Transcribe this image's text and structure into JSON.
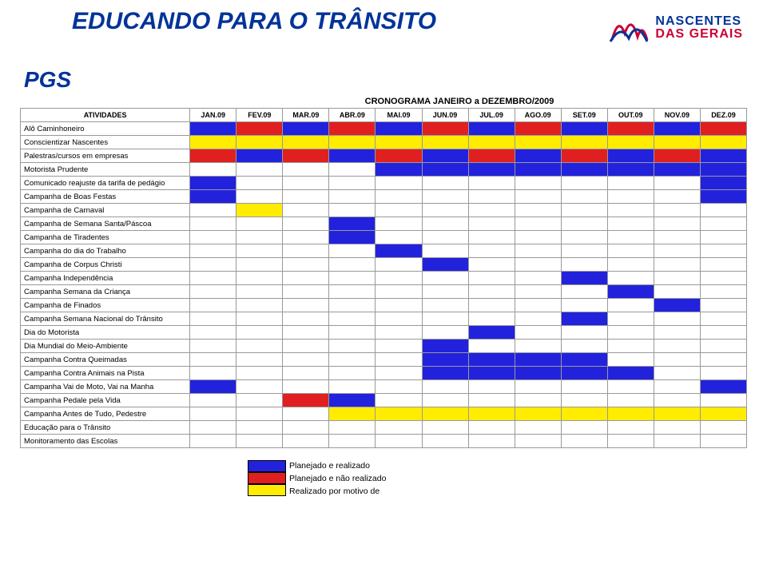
{
  "header": {
    "brand_abbr": "PGS",
    "title": "EDUCANDO PARA O TRÂNSITO",
    "logo": {
      "line1": "NASCENTES",
      "line2": "DAS GERAIS"
    }
  },
  "subtitle": "CRONOGRAMA JANEIRO a DEZEMBRO/2009",
  "columns_label": "ATIVIDADES",
  "months": [
    "JAN.09",
    "FEV.09",
    "MAR.09",
    "ABR.09",
    "MAI.09",
    "JUN.09",
    "JUL.09",
    "AGO.09",
    "SET.09",
    "OUT.09",
    "NOV.09",
    "DEZ.09"
  ],
  "colors": {
    "blue": "#2222dd",
    "red": "#e02020",
    "yellow": "#ffec00",
    "white": "#ffffff",
    "header_text": "#003399",
    "logo_red": "#cc0033",
    "border": "#999999"
  },
  "activities": [
    {
      "name": "Alô Caminhoneiro",
      "cells": [
        "blue",
        "red",
        "blue",
        "red",
        "blue",
        "red",
        "blue",
        "red",
        "blue",
        "red",
        "blue",
        "red"
      ]
    },
    {
      "name": "Conscientizar Nascentes",
      "cells": [
        "yellow",
        "yellow",
        "yellow",
        "yellow",
        "yellow",
        "yellow",
        "yellow",
        "yellow",
        "yellow",
        "yellow",
        "yellow",
        "yellow"
      ]
    },
    {
      "name": "Palestras/cursos em empresas",
      "cells": [
        "red",
        "blue",
        "red",
        "blue",
        "red",
        "blue",
        "red",
        "blue",
        "red",
        "blue",
        "red",
        "blue"
      ]
    },
    {
      "name": "Motorista Prudente",
      "cells": [
        "",
        "",
        "",
        "",
        "blue",
        "blue",
        "blue",
        "blue",
        "blue",
        "blue",
        "blue",
        "blue"
      ]
    },
    {
      "name": "Comunicado reajuste da tarifa de pedágio",
      "cells": [
        "blue",
        "",
        "",
        "",
        "",
        "",
        "",
        "",
        "",
        "",
        "",
        "blue"
      ]
    },
    {
      "name": "Campanha de Boas Festas",
      "cells": [
        "blue",
        "",
        "",
        "",
        "",
        "",
        "",
        "",
        "",
        "",
        "",
        "blue"
      ]
    },
    {
      "name": "Campanha de Carnaval",
      "cells": [
        "",
        "yellow",
        "",
        "",
        "",
        "",
        "",
        "",
        "",
        "",
        "",
        ""
      ]
    },
    {
      "name": "Campanha de Semana Santa/Páscoa",
      "cells": [
        "",
        "",
        "",
        "blue",
        "",
        "",
        "",
        "",
        "",
        "",
        "",
        ""
      ]
    },
    {
      "name": "Campanha de Tiradentes",
      "cells": [
        "",
        "",
        "",
        "blue",
        "",
        "",
        "",
        "",
        "",
        "",
        "",
        ""
      ]
    },
    {
      "name": "Campanha do dia do Trabalho",
      "cells": [
        "",
        "",
        "",
        "",
        "blue",
        "",
        "",
        "",
        "",
        "",
        "",
        ""
      ]
    },
    {
      "name": "Campanha de Corpus Christi",
      "cells": [
        "",
        "",
        "",
        "",
        "",
        "blue",
        "",
        "",
        "",
        "",
        "",
        ""
      ]
    },
    {
      "name": "Campanha Independência",
      "cells": [
        "",
        "",
        "",
        "",
        "",
        "",
        "",
        "",
        "blue",
        "",
        "",
        ""
      ]
    },
    {
      "name": "Campanha Semana da Criança",
      "cells": [
        "",
        "",
        "",
        "",
        "",
        "",
        "",
        "",
        "",
        "blue",
        "",
        ""
      ]
    },
    {
      "name": "Campanha de Finados",
      "cells": [
        "",
        "",
        "",
        "",
        "",
        "",
        "",
        "",
        "",
        "",
        "blue",
        ""
      ]
    },
    {
      "name": "Campanha Semana Nacional do Trânsito",
      "cells": [
        "",
        "",
        "",
        "",
        "",
        "",
        "",
        "",
        "blue",
        "",
        "",
        ""
      ]
    },
    {
      "name": "Dia do Motorista",
      "cells": [
        "",
        "",
        "",
        "",
        "",
        "",
        "blue",
        "",
        "",
        "",
        "",
        ""
      ]
    },
    {
      "name": "Dia Mundial do Meio-Ambiente",
      "cells": [
        "",
        "",
        "",
        "",
        "",
        "blue",
        "",
        "",
        "",
        "",
        "",
        ""
      ]
    },
    {
      "name": "Campanha Contra Queimadas",
      "cells": [
        "",
        "",
        "",
        "",
        "",
        "blue",
        "blue",
        "blue",
        "blue",
        "",
        "",
        ""
      ]
    },
    {
      "name": "Campanha Contra Animais na Pista",
      "cells": [
        "",
        "",
        "",
        "",
        "",
        "blue",
        "blue",
        "blue",
        "blue",
        "blue",
        "",
        ""
      ]
    },
    {
      "name": "Campanha Vai de Moto, Vai na Manha",
      "cells": [
        "blue",
        "",
        "",
        "",
        "",
        "",
        "",
        "",
        "",
        "",
        "",
        "blue"
      ]
    },
    {
      "name": "Campanha Pedale pela Vida",
      "cells": [
        "",
        "",
        "red",
        "blue",
        "",
        "",
        "",
        "",
        "",
        "",
        "",
        ""
      ]
    },
    {
      "name": "Campanha Antes de Tudo, Pedestre",
      "cells": [
        "",
        "",
        "",
        "yellow",
        "yellow",
        "yellow",
        "yellow",
        "yellow",
        "yellow",
        "yellow",
        "yellow",
        "yellow"
      ]
    },
    {
      "name": "Educação para o Trânsito",
      "cells": [
        "",
        "",
        "",
        "",
        "",
        "",
        "",
        "",
        "",
        "",
        "",
        ""
      ]
    },
    {
      "name": "Monitoramento das Escolas",
      "cells": [
        "",
        "",
        "",
        "",
        "",
        "",
        "",
        "",
        "",
        "",
        "",
        ""
      ]
    }
  ],
  "legend": [
    {
      "color": "blue",
      "label": "Planejado e realizado"
    },
    {
      "color": "red",
      "label": "Planejado e não realizado"
    },
    {
      "color": "yellow",
      "label": "Realizado por motivo de"
    }
  ]
}
